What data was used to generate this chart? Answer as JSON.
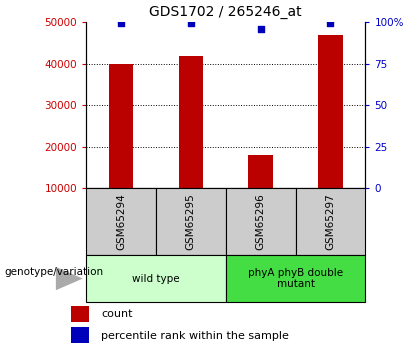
{
  "title": "GDS1702 / 265246_at",
  "samples": [
    "GSM65294",
    "GSM65295",
    "GSM65296",
    "GSM65297"
  ],
  "counts": [
    40000,
    42000,
    18000,
    47000
  ],
  "percentile_ranks": [
    99.5,
    99.5,
    96.0,
    99.5
  ],
  "ylim_left": [
    10000,
    50000
  ],
  "ylim_right": [
    0,
    100
  ],
  "yticks_left": [
    10000,
    20000,
    30000,
    40000,
    50000
  ],
  "yticks_right": [
    0,
    25,
    50,
    75,
    100
  ],
  "bar_color": "#bb0000",
  "dot_color": "#0000bb",
  "bar_width": 0.35,
  "left_tick_color": "#cc0000",
  "right_tick_color": "#0000cc",
  "groups": [
    {
      "label": "wild type",
      "samples": [
        0,
        1
      ],
      "color": "#ccffcc"
    },
    {
      "label": "phyA phyB double\nmutant",
      "samples": [
        2,
        3
      ],
      "color": "#44dd44"
    }
  ],
  "genotype_label": "genotype/variation",
  "legend_count_label": "count",
  "legend_pct_label": "percentile rank within the sample",
  "sample_box_color": "#cccccc"
}
